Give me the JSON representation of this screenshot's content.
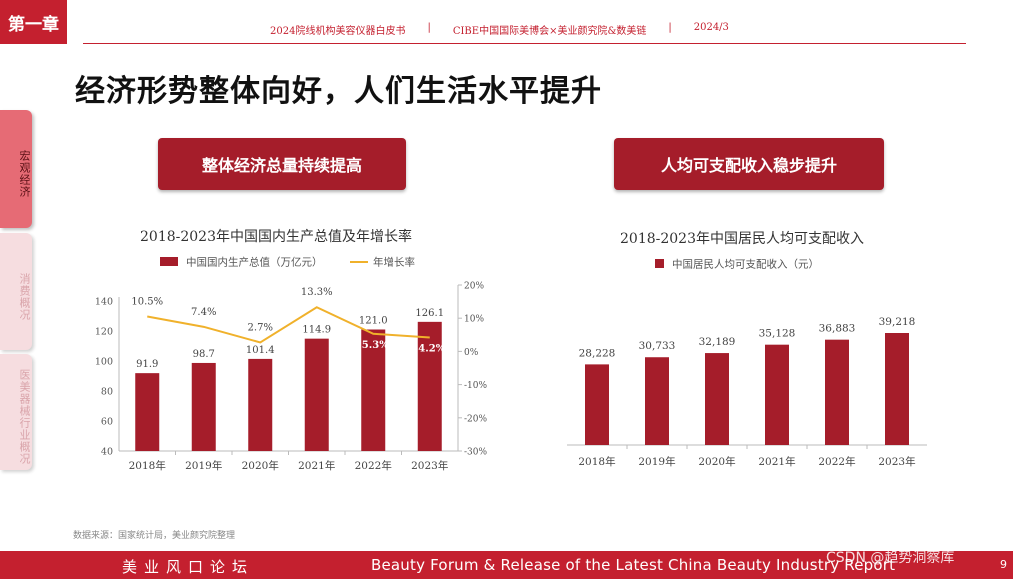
{
  "header": {
    "chapter": "第一章",
    "meta": [
      "2024院线机构美容仪器白皮书",
      "|",
      "CIBE中国国际美博会×美业颜究院&数美链",
      "|",
      "2024/3"
    ]
  },
  "page_title": "经济形势整体向好，人们生活水平提升",
  "side_tabs": [
    "宏观经济",
    "消费概况",
    "医美器械行业概况"
  ],
  "sections": {
    "left_button": "整体经济总量持续提高",
    "right_button": "人均可支配收入稳步提升"
  },
  "colors": {
    "brand_red": "#c4202f",
    "bar_red": "#a51d2a",
    "line_gold": "#f0b12b"
  },
  "chart_data": [
    {
      "type": "bar",
      "title": "2018-2023年中国国内生产总值及年增长率",
      "categories": [
        "2018年",
        "2019年",
        "2020年",
        "2021年",
        "2022年",
        "2023年"
      ],
      "series": [
        {
          "name": "中国国内生产总值（万亿元）",
          "type": "bar",
          "axis": "left",
          "values": [
            91.9,
            98.7,
            101.4,
            114.9,
            121.0,
            126.1
          ],
          "labels": [
            "91.9",
            "98.7",
            "101.4",
            "114.9",
            "121.0",
            "126.1"
          ]
        },
        {
          "name": "年增长率",
          "type": "line",
          "axis": "right",
          "values": [
            10.5,
            7.4,
            2.7,
            13.3,
            5.3,
            4.2
          ],
          "labels": [
            "10.5%",
            "7.4%",
            "2.7%",
            "13.3%",
            "5.3%",
            "4.2%"
          ]
        }
      ],
      "ylim": [
        40,
        140
      ],
      "yticks": [
        "40",
        "60",
        "80",
        "100",
        "120",
        "140"
      ],
      "y2lim": [
        -30,
        20
      ],
      "y2ticks": [
        "20%",
        "10%",
        "0%",
        "-10%",
        "-20%",
        "-30%"
      ],
      "legend": "top"
    },
    {
      "type": "bar",
      "title": "2018-2023年中国居民人均可支配收入",
      "categories": [
        "2018年",
        "2019年",
        "2020年",
        "2021年",
        "2022年",
        "2023年"
      ],
      "series": [
        {
          "name": "中国居民人均可支配收入（元）",
          "values": [
            28228,
            30733,
            32189,
            35128,
            36883,
            39218
          ],
          "labels": [
            "28,228",
            "30,733",
            "32,189",
            "35,128",
            "36,883",
            "39,218"
          ]
        }
      ],
      "legend": "top"
    }
  ],
  "source_note": "数据来源：国家统计局，美业颜究院整理",
  "footer": {
    "left": "美业风口论坛",
    "right": "Beauty Forum & Release of the Latest China Beauty Industry Report",
    "page": "9",
    "watermark": "CSDN @趋势洞察库"
  }
}
